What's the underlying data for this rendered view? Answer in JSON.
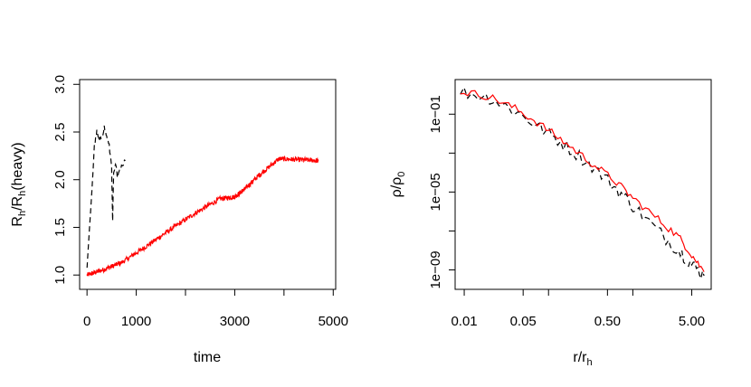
{
  "chart_data": [
    {
      "type": "line",
      "xlabel": "time",
      "ylabel_main": "R",
      "ylabel_sub1": "h",
      "ylabel_mid": "/R",
      "ylabel_sub2": "h",
      "ylabel_tail": "(heavy)",
      "xlim": [
        -150,
        5050
      ],
      "ylim": [
        0.85,
        3.05
      ],
      "x_ticks": [
        {
          "v": 0,
          "label": "0"
        },
        {
          "v": 1000,
          "label": "1000"
        },
        {
          "v": 3000,
          "label": "3000"
        },
        {
          "v": 5000,
          "label": "5000"
        }
      ],
      "x_minor_ticks": [
        2000,
        4000
      ],
      "y_ticks": [
        {
          "v": 1.0,
          "label": "1.0"
        },
        {
          "v": 1.5,
          "label": "1.5"
        },
        {
          "v": 2.0,
          "label": "2.0"
        },
        {
          "v": 2.5,
          "label": "2.5"
        },
        {
          "v": 3.0,
          "label": "3.0"
        }
      ],
      "series": [
        {
          "color": "#ff0000",
          "dash": "solid",
          "noise": 0.025,
          "noise_density": 700,
          "x": [
            0,
            300,
            700,
            1200,
            1700,
            2200,
            2700,
            3000,
            3200,
            3500,
            3900,
            4300,
            4700
          ],
          "y": [
            1.0,
            1.05,
            1.13,
            1.3,
            1.48,
            1.65,
            1.8,
            1.82,
            1.9,
            2.05,
            2.22,
            2.21,
            2.2
          ]
        },
        {
          "color": "#000000",
          "dash": "6,4",
          "noise": 0.03,
          "noise_density": 60,
          "x": [
            0,
            100,
            150,
            200,
            250,
            300,
            350,
            400,
            450,
            500,
            520,
            540,
            580,
            620,
            700,
            780
          ],
          "y": [
            1.05,
            1.9,
            2.35,
            2.5,
            2.4,
            2.45,
            2.55,
            2.45,
            2.35,
            2.15,
            1.55,
            2.05,
            2.15,
            2.05,
            2.15,
            2.2
          ]
        }
      ]
    },
    {
      "type": "line",
      "xlabel_main": "r/r",
      "xlabel_sub": "h",
      "ylabel_main": "ρ/ρ",
      "ylabel_sub": "0",
      "x_scale": "log",
      "y_scale": "log",
      "xlim": [
        0.0078,
        8.5
      ],
      "ylim": [
        1e-10,
        6
      ],
      "x_ticks": [
        {
          "v": 0.01,
          "label": "0.01"
        },
        {
          "v": 0.05,
          "label": "0.05"
        },
        {
          "v": 0.5,
          "label": "0.50"
        },
        {
          "v": 5,
          "label": "5.00"
        }
      ],
      "x_minor_ticks": [
        0.1,
        1
      ],
      "y_ticks": [
        {
          "v": 0.1,
          "label": "1e−01"
        },
        {
          "v": 1e-05,
          "label": "1e−05"
        },
        {
          "v": 1e-09,
          "label": "1e−09"
        }
      ],
      "y_minor_ticks": [
        0.001,
        1e-07
      ],
      "series": [
        {
          "color": "#000000",
          "dash": "6,4",
          "noise": 0.35,
          "noise_density": 90,
          "x": [
            0.009,
            0.02,
            0.04,
            0.08,
            0.15,
            0.3,
            0.6,
            1.0,
            2.0,
            3.5,
            5.0,
            7.0
          ],
          "y": [
            1.5,
            0.7,
            0.15,
            0.02,
            0.003,
            0.0003,
            2e-05,
            2e-06,
            1e-07,
            1e-08,
            2e-09,
            5e-10
          ]
        },
        {
          "color": "#ff0000",
          "dash": "solid",
          "noise": 0.2,
          "noise_density": 90,
          "x": [
            0.009,
            0.02,
            0.04,
            0.08,
            0.15,
            0.3,
            0.6,
            1.0,
            2.0,
            3.5,
            5.0,
            7.0
          ],
          "y": [
            1.5,
            0.8,
            0.2,
            0.03,
            0.004,
            0.0004,
            4e-05,
            5e-06,
            4e-07,
            5e-08,
            6e-09,
            8e-10
          ]
        }
      ]
    }
  ]
}
